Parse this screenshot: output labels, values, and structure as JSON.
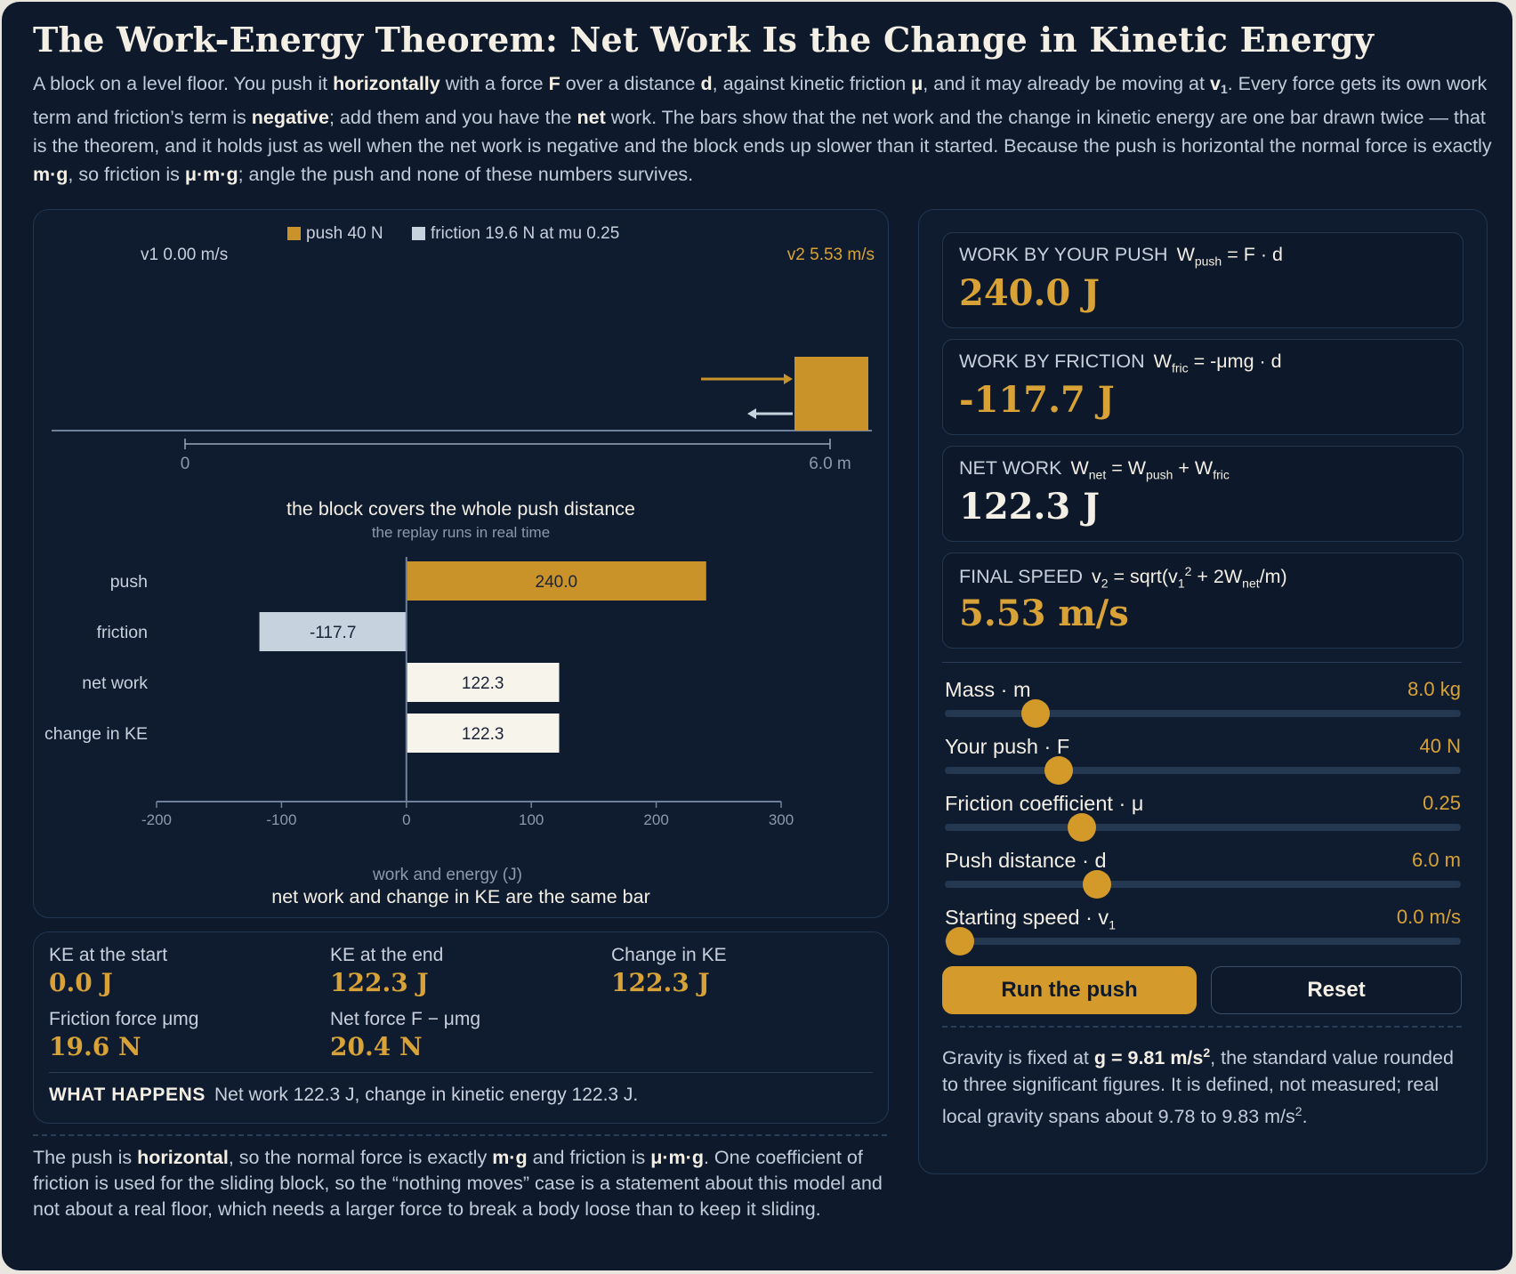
{
  "title": "The Work-Energy Theorem: Net Work Is the Change in Kinetic Energy",
  "intro": {
    "p1": "A block on a level floor. You push it ",
    "b1": "horizontally",
    "p2": " with a force ",
    "b2": "F",
    "p3": " over a distance ",
    "b3": "d",
    "p4": ", against kinetic friction ",
    "b4": "μ",
    "p5": ", and it may already be moving at ",
    "b5": "v",
    "b5sub": "1",
    "p6": ". Every force gets its own work term and friction’s term is ",
    "b6": "negative",
    "p7": "; add them and you have the ",
    "b7": "net",
    "p8": " work. The bars show that the net work and the change in kinetic energy are one bar drawn twice — that is the theorem, and it holds just as well when the net work is negative and the block ends up slower than it started. Because the push is horizontal the normal force is exactly ",
    "b8": "m·g",
    "p9": ", so friction is ",
    "b9": "μ·m·g",
    "p10": "; angle the push and none of these numbers survives."
  },
  "scene": {
    "legend_push": "push 40 N",
    "legend_friction": "friction 19.6 N at mu 0.25",
    "v1_label": "v1 0.00 m/s",
    "v2_label": "v2 5.53 m/s",
    "ruler_start": "0",
    "ruler_end": "6.0 m",
    "caption": "the block covers the whole push distance",
    "subcaption": "the replay runs in real time",
    "colors": {
      "push": "#c9932a",
      "friction": "#c6d2de",
      "net": "#f7f4ec",
      "axis": "#6f819a"
    }
  },
  "chart_data": {
    "type": "bar",
    "orientation": "horizontal",
    "categories": [
      "push",
      "friction",
      "net work",
      "change in KE"
    ],
    "values": [
      240.0,
      -117.7,
      122.3,
      122.3
    ],
    "value_labels": [
      "240.0",
      "-117.7",
      "122.3",
      "122.3"
    ],
    "xlabel": "work and energy (J)",
    "caption": "net work and change in KE are the same bar",
    "xlim": [
      -200,
      300
    ],
    "xticks": [
      -200,
      -100,
      0,
      100,
      200,
      300
    ],
    "xtick_labels": [
      "-200",
      "-100",
      "0",
      "100",
      "200",
      "300"
    ],
    "grid": false
  },
  "stats": {
    "ke_start_label": "KE at the start",
    "ke_start": "0.0 J",
    "ke_end_label": "KE at the end",
    "ke_end": "122.3 J",
    "dke_label": "Change in KE",
    "dke": "122.3 J",
    "fric_label": "Friction force μmg",
    "fric": "19.6 N",
    "net_label": "Net force F − μmg",
    "net": "20.4 N",
    "what_label": "WHAT HAPPENS",
    "what_text": "Net work 122.3 J, change in kinetic energy 122.3 J."
  },
  "footnote": {
    "p1": "The push is ",
    "b1": "horizontal",
    "p2": ", so the normal force is exactly ",
    "b2": "m·g",
    "p3": " and friction is ",
    "b3": "μ·m·g",
    "p4": ". One coefficient of friction is used for the sliding block, so the “nothing moves” case is a statement about this model and not about a real floor, which needs a larger force to break a body loose than to keep it sliding."
  },
  "cards": {
    "push": {
      "label": "WORK BY YOUR PUSH",
      "formula": "W",
      "formula_sub": "push",
      "formula_rest": " = F · d",
      "value": "240.0 J",
      "color": "#d8a236"
    },
    "friction": {
      "label": "WORK BY FRICTION",
      "formula": "W",
      "formula_sub": "fric",
      "formula_rest": " = -μmg · d",
      "value": "-117.7 J",
      "color": "#d8a236"
    },
    "net": {
      "label": "NET WORK",
      "formula": "W",
      "formula_sub": "net",
      "formula_mid": " = W",
      "formula_sub2": "push",
      "formula_mid2": " + W",
      "formula_sub3": "fric",
      "value": "122.3 J",
      "color": "#f4efe4"
    },
    "speed": {
      "label": "FINAL SPEED",
      "f1": "v",
      "f1sub": "2",
      "f2": " = sqrt(v",
      "f2sub": "1",
      "f2sup": "2",
      "f3": " + 2W",
      "f3sub": "net",
      "f4": "/m)",
      "value": "5.53 m/s",
      "color": "#d8a236"
    }
  },
  "sliders": [
    {
      "label": "Mass · m",
      "value": "8.0 kg",
      "level": 0.175
    },
    {
      "label": "Your push · F",
      "value": "40 N",
      "level": 0.22
    },
    {
      "label": "Friction coefficient · μ",
      "value": "0.25",
      "level": 0.265
    },
    {
      "label": "Push distance · d",
      "value": "6.0 m",
      "level": 0.295
    },
    {
      "label": "Starting speed · v",
      "label_sub": "1",
      "value": "0.0 m/s",
      "level": 0.03
    }
  ],
  "buttons": {
    "run": "Run the push",
    "reset": "Reset"
  },
  "gravity": {
    "p1": "Gravity is fixed at ",
    "b1": "g = 9.81 m/s",
    "b1sup": "2",
    "p2": ", the standard value rounded to three significant figures. It is defined, not measured; real local gravity spans about 9.78 to 9.83 m/s",
    "p2sup": "2",
    "p3": "."
  }
}
